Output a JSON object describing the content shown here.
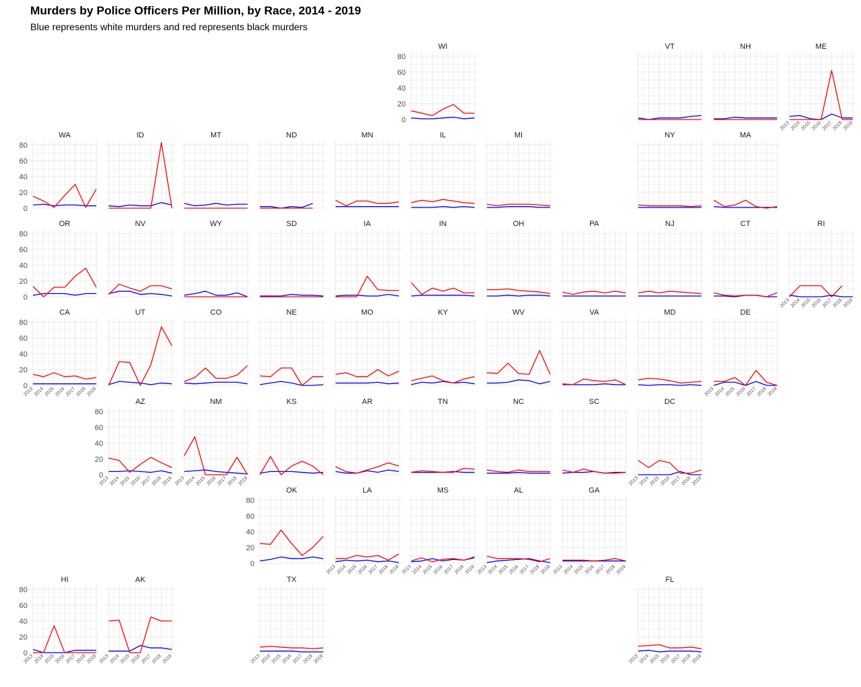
{
  "title": "Murders by Police Officers Per Million, by Race, 2014 - 2019",
  "subtitle": "Blue represents white murders and red represents black murders",
  "colors": {
    "white": "#0000ff",
    "black": "#ff0000",
    "grid": "#ebebeb"
  },
  "chart_data": {
    "type": "line",
    "facet": "state grid map",
    "x": [
      2013,
      2014,
      2015,
      2016,
      2017,
      2018,
      2019
    ],
    "x_tick_labels": [
      "2013",
      "2014",
      "2015",
      "2016",
      "2017",
      "2018",
      "2019"
    ],
    "y_ticks": [
      0,
      20,
      40,
      60,
      80
    ],
    "ylim": [
      0,
      85
    ],
    "grid": true,
    "legend": "none",
    "series_colors": {
      "white": "blue",
      "black": "red"
    },
    "panels": [
      {
        "state": "WI",
        "grid_row": 0,
        "grid_col": 5,
        "white": [
          2,
          1,
          1,
          2,
          3,
          1,
          2
        ],
        "black": [
          11,
          8,
          5,
          13,
          19,
          8,
          8
        ]
      },
      {
        "state": "VT",
        "grid_row": 0,
        "grid_col": 8,
        "white": [
          2,
          0,
          2,
          2,
          2,
          4,
          5
        ],
        "black": [
          0,
          0,
          0,
          0,
          0,
          0,
          0
        ]
      },
      {
        "state": "NH",
        "grid_row": 0,
        "grid_col": 9,
        "white": [
          1,
          1,
          3,
          2,
          2,
          2,
          2
        ],
        "black": [
          0,
          0,
          0,
          0,
          0,
          0,
          0
        ]
      },
      {
        "state": "ME",
        "grid_row": 0,
        "grid_col": 10,
        "white": [
          4,
          5,
          1,
          0,
          7,
          2,
          2
        ],
        "black": [
          0,
          0,
          0,
          0,
          62,
          0,
          0
        ]
      },
      {
        "state": "WA",
        "grid_row": 1,
        "grid_col": 0,
        "white": [
          4,
          5,
          3,
          4,
          4,
          3,
          3
        ],
        "black": [
          15,
          9,
          1,
          16,
          30,
          1,
          24
        ]
      },
      {
        "state": "ID",
        "grid_row": 1,
        "grid_col": 1,
        "white": [
          3,
          2,
          4,
          3,
          3,
          7,
          4
        ],
        "black": [
          0,
          0,
          0,
          0,
          0,
          83,
          0
        ]
      },
      {
        "state": "MT",
        "grid_row": 1,
        "grid_col": 2,
        "white": [
          6,
          3,
          4,
          6,
          4,
          5,
          5
        ],
        "black": [
          0,
          0,
          0,
          0,
          0,
          0,
          0
        ]
      },
      {
        "state": "ND",
        "grid_row": 1,
        "grid_col": 3,
        "white": [
          2,
          2,
          0,
          2,
          1,
          6,
          null
        ],
        "black": [
          0,
          0,
          0,
          0,
          0,
          0,
          null
        ]
      },
      {
        "state": "MN",
        "grid_row": 1,
        "grid_col": 4,
        "white": [
          2,
          2,
          2,
          2,
          2,
          2,
          2
        ],
        "black": [
          10,
          3,
          9,
          9,
          6,
          6,
          8
        ]
      },
      {
        "state": "IL",
        "grid_row": 1,
        "grid_col": 5,
        "white": [
          1,
          1,
          1,
          2,
          1,
          2,
          1
        ],
        "black": [
          7,
          10,
          8,
          11,
          9,
          7,
          6
        ]
      },
      {
        "state": "MI",
        "grid_row": 1,
        "grid_col": 6,
        "white": [
          1,
          1,
          2,
          2,
          2,
          1,
          1
        ],
        "black": [
          5,
          3,
          5,
          5,
          5,
          4,
          3
        ]
      },
      {
        "state": "NY",
        "grid_row": 1,
        "grid_col": 8,
        "white": [
          1,
          1,
          1,
          1,
          1,
          1,
          1
        ],
        "black": [
          4,
          3,
          3,
          3,
          3,
          2,
          3
        ]
      },
      {
        "state": "MA",
        "grid_row": 1,
        "grid_col": 9,
        "white": [
          2,
          1,
          1,
          1,
          1,
          1,
          1
        ],
        "black": [
          10,
          2,
          4,
          10,
          2,
          0,
          2
        ]
      },
      {
        "state": "OR",
        "grid_row": 2,
        "grid_col": 0,
        "white": [
          2,
          4,
          4,
          4,
          2,
          4,
          4
        ],
        "black": [
          13,
          0,
          12,
          12,
          26,
          36,
          12
        ]
      },
      {
        "state": "NV",
        "grid_row": 2,
        "grid_col": 1,
        "white": [
          4,
          7,
          7,
          3,
          4,
          3,
          1
        ],
        "black": [
          3,
          16,
          11,
          7,
          14,
          14,
          10
        ]
      },
      {
        "state": "WY",
        "grid_row": 2,
        "grid_col": 2,
        "white": [
          2,
          4,
          7,
          2,
          2,
          5,
          0
        ],
        "black": [
          0,
          0,
          0,
          0,
          0,
          0,
          0
        ]
      },
      {
        "state": "SD",
        "grid_row": 2,
        "grid_col": 3,
        "white": [
          1,
          1,
          1,
          3,
          2,
          2,
          1
        ],
        "black": [
          0,
          0,
          0,
          0,
          0,
          0,
          0
        ]
      },
      {
        "state": "IA",
        "grid_row": 2,
        "grid_col": 4,
        "white": [
          1,
          2,
          2,
          1,
          1,
          3,
          1
        ],
        "black": [
          0,
          0,
          0,
          26,
          9,
          8,
          8
        ]
      },
      {
        "state": "IN",
        "grid_row": 2,
        "grid_col": 5,
        "white": [
          1,
          2,
          2,
          2,
          2,
          2,
          1
        ],
        "black": [
          18,
          3,
          11,
          7,
          11,
          5,
          5
        ]
      },
      {
        "state": "OH",
        "grid_row": 2,
        "grid_col": 6,
        "white": [
          1,
          1,
          2,
          1,
          2,
          2,
          1
        ],
        "black": [
          9,
          9,
          10,
          8,
          7,
          6,
          4
        ]
      },
      {
        "state": "PA",
        "grid_row": 2,
        "grid_col": 7,
        "white": [
          1,
          1,
          1,
          1,
          1,
          1,
          1
        ],
        "black": [
          6,
          3,
          6,
          7,
          5,
          7,
          5
        ]
      },
      {
        "state": "NJ",
        "grid_row": 2,
        "grid_col": 8,
        "white": [
          1,
          1,
          1,
          1,
          1,
          1,
          1
        ],
        "black": [
          5,
          7,
          5,
          7,
          6,
          5,
          4
        ]
      },
      {
        "state": "CT",
        "grid_row": 2,
        "grid_col": 9,
        "white": [
          1,
          1,
          0,
          2,
          2,
          0,
          0
        ],
        "black": [
          5,
          2,
          1,
          2,
          2,
          0,
          5
        ]
      },
      {
        "state": "RI",
        "grid_row": 2,
        "grid_col": 10,
        "white": [
          2,
          0,
          0,
          0,
          2,
          0,
          0
        ],
        "black": [
          0,
          14,
          14,
          14,
          0,
          14,
          null
        ]
      },
      {
        "state": "CA",
        "grid_row": 3,
        "grid_col": 0,
        "white": [
          2,
          2,
          2,
          2,
          2,
          2,
          2
        ],
        "black": [
          14,
          11,
          16,
          11,
          12,
          8,
          10
        ]
      },
      {
        "state": "UT",
        "grid_row": 3,
        "grid_col": 1,
        "white": [
          1,
          5,
          4,
          3,
          1,
          3,
          2
        ],
        "black": [
          0,
          30,
          29,
          0,
          26,
          74,
          50
        ]
      },
      {
        "state": "CO",
        "grid_row": 3,
        "grid_col": 2,
        "white": [
          3,
          2,
          3,
          4,
          4,
          4,
          2
        ],
        "black": [
          5,
          10,
          22,
          9,
          9,
          13,
          25
        ]
      },
      {
        "state": "NE",
        "grid_row": 3,
        "grid_col": 3,
        "white": [
          1,
          3,
          5,
          3,
          0,
          0,
          1
        ],
        "black": [
          12,
          11,
          22,
          22,
          0,
          11,
          11
        ]
      },
      {
        "state": "MO",
        "grid_row": 3,
        "grid_col": 4,
        "white": [
          3,
          3,
          3,
          3,
          4,
          2,
          3
        ],
        "black": [
          14,
          16,
          11,
          11,
          20,
          12,
          18
        ]
      },
      {
        "state": "KY",
        "grid_row": 3,
        "grid_col": 5,
        "white": [
          1,
          4,
          3,
          5,
          3,
          4,
          2
        ],
        "black": [
          6,
          9,
          12,
          6,
          3,
          8,
          11
        ]
      },
      {
        "state": "WV",
        "grid_row": 3,
        "grid_col": 6,
        "white": [
          3,
          3,
          4,
          7,
          6,
          2,
          5
        ],
        "black": [
          16,
          15,
          28,
          15,
          14,
          44,
          14
        ]
      },
      {
        "state": "VA",
        "grid_row": 3,
        "grid_col": 7,
        "white": [
          1,
          1,
          1,
          1,
          2,
          1,
          1
        ],
        "black": [
          2,
          1,
          8,
          6,
          5,
          7,
          1
        ]
      },
      {
        "state": "MD",
        "grid_row": 3,
        "grid_col": 8,
        "white": [
          1,
          0,
          1,
          1,
          0,
          1,
          0
        ],
        "black": [
          7,
          9,
          8,
          6,
          3,
          4,
          5
        ]
      },
      {
        "state": "DE",
        "grid_row": 3,
        "grid_col": 9,
        "white": [
          0,
          4,
          4,
          0,
          5,
          0,
          0
        ],
        "black": [
          5,
          5,
          10,
          0,
          19,
          4,
          0
        ]
      },
      {
        "state": "AZ",
        "grid_row": 4,
        "grid_col": 1,
        "white": [
          4,
          4,
          5,
          4,
          3,
          5,
          2
        ],
        "black": [
          21,
          18,
          3,
          13,
          22,
          15,
          9
        ]
      },
      {
        "state": "NM",
        "grid_row": 4,
        "grid_col": 2,
        "white": [
          4,
          5,
          6,
          4,
          3,
          2,
          1
        ],
        "black": [
          24,
          48,
          0,
          0,
          0,
          22,
          0
        ]
      },
      {
        "state": "KS",
        "grid_row": 4,
        "grid_col": 3,
        "white": [
          2,
          4,
          4,
          4,
          3,
          2,
          3
        ],
        "black": [
          0,
          23,
          0,
          11,
          17,
          11,
          0
        ]
      },
      {
        "state": "AR",
        "grid_row": 4,
        "grid_col": 4,
        "white": [
          4,
          2,
          2,
          5,
          3,
          6,
          4
        ],
        "black": [
          10,
          4,
          2,
          6,
          10,
          15,
          11
        ]
      },
      {
        "state": "TN",
        "grid_row": 4,
        "grid_col": 5,
        "white": [
          3,
          3,
          3,
          3,
          4,
          3,
          3
        ],
        "black": [
          3,
          5,
          4,
          3,
          3,
          8,
          7
        ]
      },
      {
        "state": "NC",
        "grid_row": 4,
        "grid_col": 6,
        "white": [
          2,
          2,
          2,
          3,
          2,
          2,
          2
        ],
        "black": [
          6,
          4,
          3,
          6,
          4,
          4,
          4
        ]
      },
      {
        "state": "SC",
        "grid_row": 4,
        "grid_col": 7,
        "white": [
          2,
          3,
          3,
          4,
          2,
          3,
          3
        ],
        "black": [
          6,
          3,
          7,
          4,
          2,
          2,
          3
        ]
      },
      {
        "state": "DC",
        "grid_row": 4,
        "grid_col": 8,
        "white": [
          0,
          0,
          0,
          0,
          4,
          0,
          0
        ],
        "black": [
          18,
          9,
          18,
          15,
          2,
          2,
          6
        ]
      },
      {
        "state": "OK",
        "grid_row": 5,
        "grid_col": 3,
        "white": [
          3,
          5,
          8,
          6,
          6,
          8,
          6
        ],
        "black": [
          25,
          24,
          42,
          25,
          10,
          20,
          34
        ]
      },
      {
        "state": "LA",
        "grid_row": 5,
        "grid_col": 4,
        "white": [
          2,
          4,
          3,
          4,
          2,
          3,
          1
        ],
        "black": [
          6,
          6,
          10,
          8,
          10,
          4,
          12
        ]
      },
      {
        "state": "MS",
        "grid_row": 5,
        "grid_col": 5,
        "white": [
          2,
          3,
          6,
          3,
          5,
          4,
          8
        ],
        "black": [
          3,
          7,
          2,
          5,
          6,
          4,
          7
        ]
      },
      {
        "state": "AL",
        "grid_row": 5,
        "grid_col": 6,
        "white": [
          1,
          3,
          4,
          5,
          6,
          3,
          1
        ],
        "black": [
          9,
          6,
          6,
          6,
          5,
          2,
          6
        ]
      },
      {
        "state": "GA",
        "grid_row": 5,
        "grid_col": 7,
        "white": [
          3,
          3,
          3,
          3,
          3,
          3,
          3
        ],
        "black": [
          4,
          4,
          4,
          3,
          4,
          6,
          3
        ]
      },
      {
        "state": "HI",
        "grid_row": 6,
        "grid_col": 0,
        "white": [
          4,
          0,
          0,
          0,
          3,
          3,
          3
        ],
        "black": [
          0,
          0,
          34,
          0,
          0,
          0,
          0
        ]
      },
      {
        "state": "AK",
        "grid_row": 6,
        "grid_col": 1,
        "white": [
          2,
          2,
          2,
          9,
          6,
          6,
          4
        ],
        "black": [
          40,
          41,
          0,
          0,
          45,
          40,
          40
        ]
      },
      {
        "state": "TX",
        "grid_row": 6,
        "grid_col": 3,
        "white": [
          2,
          2,
          2,
          2,
          1,
          1,
          1
        ],
        "black": [
          7,
          8,
          7,
          6,
          6,
          5,
          6
        ]
      },
      {
        "state": "FL",
        "grid_row": 6,
        "grid_col": 8,
        "white": [
          2,
          3,
          1,
          2,
          2,
          2,
          1
        ],
        "black": [
          8,
          9,
          10,
          6,
          6,
          7,
          5
        ]
      }
    ]
  }
}
